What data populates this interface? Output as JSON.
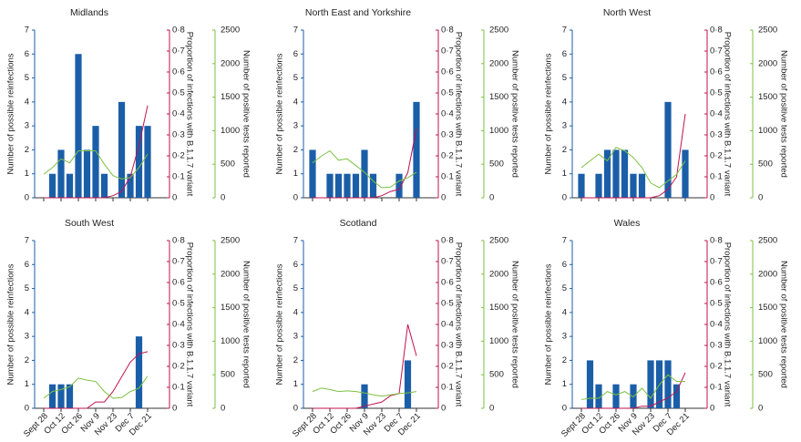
{
  "chart_data": [
    {
      "type": "bar",
      "title": "Midlands",
      "categories": [
        null,
        null,
        null,
        null,
        null,
        null,
        null,
        null,
        null,
        null,
        null,
        null,
        null
      ],
      "ylabel": "Number of possible reinfections",
      "y2label": "Proportion of infections with B.1.1.7 variant",
      "y3label": "Number of positive tests reported",
      "ylim": [
        0,
        7
      ],
      "yticks": [
        0,
        1,
        2,
        3,
        4,
        5,
        6,
        7
      ],
      "y2lim": [
        0,
        0.8
      ],
      "y2ticks": [
        0,
        {
          "value": 0.1,
          "label": "0·1"
        },
        {
          "value": 0.2,
          "label": "0·2"
        },
        {
          "value": 0.3,
          "label": "0·3"
        },
        {
          "value": 0.4,
          "label": "0·4"
        },
        {
          "value": 0.5,
          "label": "0·5"
        },
        {
          "value": 0.6,
          "label": "0·6"
        },
        {
          "value": 0.7,
          "label": "0·7"
        },
        {
          "value": 0.8,
          "label": "0·8"
        }
      ],
      "y3lim": [
        0,
        2500
      ],
      "y3ticks": [
        0,
        500,
        1000,
        1500,
        2000,
        2500
      ],
      "series": [
        {
          "type": "bar",
          "color": "#1b5ea8",
          "values": [
            0,
            1,
            2,
            1,
            6,
            2,
            3,
            1,
            0,
            4,
            1,
            3,
            3
          ]
        },
        {
          "type": "line",
          "axis": "y2",
          "color": "#c0114f",
          "values": [
            0,
            0,
            0,
            0,
            0,
            0,
            0,
            0,
            0.01,
            0.03,
            0.1,
            0.25,
            0.44
          ]
        },
        {
          "type": "line",
          "axis": "y3",
          "color": "#7dc142",
          "values": [
            350,
            450,
            580,
            520,
            700,
            700,
            700,
            500,
            330,
            280,
            300,
            450,
            650
          ]
        }
      ]
    },
    {
      "type": "bar",
      "title": "North East and Yorkshire",
      "categories": [
        null,
        null,
        null,
        null,
        null,
        null,
        null,
        null,
        null,
        null,
        null,
        null,
        null
      ],
      "ylabel": "Number of possible reinfections",
      "y2label": "Proportion of infections with B.1.1.7 variant",
      "y3label": "Number of positive tests reported",
      "ylim": [
        0,
        7
      ],
      "yticks": [
        0,
        1,
        2,
        3,
        4,
        5,
        6,
        7
      ],
      "y2lim": [
        0,
        0.8
      ],
      "y2ticks": [
        0,
        {
          "value": 0.1,
          "label": "0·1"
        },
        {
          "value": 0.2,
          "label": "0·2"
        },
        {
          "value": 0.3,
          "label": "0·3"
        },
        {
          "value": 0.4,
          "label": "0·4"
        },
        {
          "value": 0.5,
          "label": "0·5"
        },
        {
          "value": 0.6,
          "label": "0·6"
        },
        {
          "value": 0.7,
          "label": "0·7"
        },
        {
          "value": 0.8,
          "label": "0·8"
        }
      ],
      "y3lim": [
        0,
        2500
      ],
      "y3ticks": [
        0,
        500,
        1000,
        1500,
        2000,
        2500
      ],
      "series": [
        {
          "type": "bar",
          "color": "#1b5ea8",
          "values": [
            2,
            0,
            1,
            1,
            1,
            1,
            2,
            1,
            0,
            0,
            1,
            0,
            4
          ]
        },
        {
          "type": "line",
          "axis": "y2",
          "color": "#c0114f",
          "values": [
            0,
            0,
            0,
            0,
            0,
            0,
            0,
            0,
            0.01,
            0.03,
            0.04,
            0.12,
            0.33
          ]
        },
        {
          "type": "line",
          "axis": "y3",
          "color": "#7dc142",
          "values": [
            520,
            620,
            700,
            560,
            580,
            480,
            380,
            250,
            150,
            160,
            250,
            300,
            380
          ]
        }
      ]
    },
    {
      "type": "bar",
      "title": "North West",
      "categories": [
        null,
        null,
        null,
        null,
        null,
        null,
        null,
        null,
        null,
        null,
        null,
        null,
        null
      ],
      "ylabel": "Number of possible reinfections",
      "y2label": "Proportion of infections with B.1.1.7 variant",
      "y3label": "Number of positive tests reported",
      "ylim": [
        0,
        7
      ],
      "yticks": [
        0,
        1,
        2,
        3,
        4,
        5,
        6,
        7
      ],
      "y2lim": [
        0,
        0.8
      ],
      "y2ticks": [
        0,
        {
          "value": 0.1,
          "label": "0·1"
        },
        {
          "value": 0.2,
          "label": "0·2"
        },
        {
          "value": 0.3,
          "label": "0·3"
        },
        {
          "value": 0.4,
          "label": "0·4"
        },
        {
          "value": 0.5,
          "label": "0·5"
        },
        {
          "value": 0.6,
          "label": "0·6"
        },
        {
          "value": 0.7,
          "label": "0·7"
        },
        {
          "value": 0.8,
          "label": "0·8"
        }
      ],
      "y3lim": [
        0,
        2500
      ],
      "y3ticks": [
        0,
        500,
        1000,
        1500,
        2000,
        2500
      ],
      "series": [
        {
          "type": "bar",
          "color": "#1b5ea8",
          "values": [
            1,
            0,
            1,
            2,
            2,
            2,
            1,
            1,
            0,
            0,
            4,
            0,
            2
          ]
        },
        {
          "type": "line",
          "axis": "y2",
          "color": "#c0114f",
          "values": [
            0,
            0,
            0,
            0,
            0,
            0,
            0,
            0,
            0,
            0.01,
            0.04,
            0.1,
            0.4
          ]
        },
        {
          "type": "line",
          "axis": "y3",
          "color": "#7dc142",
          "values": [
            450,
            550,
            650,
            550,
            750,
            700,
            600,
            450,
            220,
            150,
            250,
            350,
            550
          ]
        }
      ]
    },
    {
      "type": "bar",
      "title": "South West",
      "categories": [
        "Sept 28",
        null,
        "Oct 12",
        null,
        "Oct 26",
        null,
        "Nov 9",
        null,
        "Nov 23",
        null,
        "Dec 7",
        null,
        "Dec 21"
      ],
      "ylabel": "Number of possible reinfections",
      "y2label": "Proportion of infections with B.1.1.7 variant",
      "y3label": "Number of positive tests reported",
      "ylim": [
        0,
        7
      ],
      "yticks": [
        0,
        1,
        2,
        3,
        4,
        5,
        6,
        7
      ],
      "y2lim": [
        0,
        0.8
      ],
      "y2ticks": [
        0,
        {
          "value": 0.1,
          "label": "0·1"
        },
        {
          "value": 0.2,
          "label": "0·2"
        },
        {
          "value": 0.3,
          "label": "0·3"
        },
        {
          "value": 0.4,
          "label": "0·4"
        },
        {
          "value": 0.5,
          "label": "0·5"
        },
        {
          "value": 0.6,
          "label": "0·6"
        },
        {
          "value": 0.7,
          "label": "0·7"
        },
        {
          "value": 0.8,
          "label": "0·8"
        }
      ],
      "y3lim": [
        0,
        2500
      ],
      "y3ticks": [
        0,
        500,
        1000,
        1500,
        2000,
        2500
      ],
      "series": [
        {
          "type": "bar",
          "color": "#1b5ea8",
          "values": [
            0,
            1,
            1,
            1,
            0,
            0,
            0,
            0,
            0,
            0,
            0,
            3,
            0
          ]
        },
        {
          "type": "line",
          "axis": "y2",
          "color": "#c0114f",
          "values": [
            0,
            0,
            0,
            0,
            0,
            0,
            0.03,
            0.03,
            0.08,
            0.15,
            0.22,
            0.26,
            0.27
          ]
        },
        {
          "type": "line",
          "axis": "y3",
          "color": "#7dc142",
          "values": [
            150,
            250,
            280,
            320,
            450,
            420,
            400,
            250,
            150,
            160,
            250,
            300,
            480
          ]
        }
      ]
    },
    {
      "type": "bar",
      "title": "Scotland",
      "categories": [
        "Sept 28",
        null,
        "Oct 12",
        null,
        "Oct 26",
        null,
        "Nov 9",
        null,
        "Nov 23",
        null,
        "Dec 7",
        null,
        "Dec 21"
      ],
      "ylabel": "Number of possible reinfections",
      "y2label": "Proportion of infections with B.1.1.7 variant",
      "y3label": "Number of positive tests reported",
      "ylim": [
        0,
        7
      ],
      "yticks": [
        0,
        1,
        2,
        3,
        4,
        5,
        6,
        7
      ],
      "y2lim": [
        0,
        0.8
      ],
      "y2ticks": [
        0,
        {
          "value": 0.1,
          "label": "0·1"
        },
        {
          "value": 0.2,
          "label": "0·2"
        },
        {
          "value": 0.3,
          "label": "0·3"
        },
        {
          "value": 0.4,
          "label": "0·4"
        },
        {
          "value": 0.5,
          "label": "0·5"
        },
        {
          "value": 0.6,
          "label": "0·6"
        },
        {
          "value": 0.7,
          "label": "0·7"
        },
        {
          "value": 0.8,
          "label": "0·8"
        }
      ],
      "y3lim": [
        0,
        2500
      ],
      "y3ticks": [
        0,
        500,
        1000,
        1500,
        2000,
        2500
      ],
      "series": [
        {
          "type": "bar",
          "color": "#1b5ea8",
          "values": [
            0,
            0,
            0,
            0,
            0,
            0,
            1,
            0,
            0,
            0,
            0,
            2,
            0
          ]
        },
        {
          "type": "line",
          "axis": "y2",
          "color": "#c0114f",
          "values": [
            0,
            0,
            0,
            0,
            0,
            0,
            0.01,
            0.02,
            0.03,
            0.06,
            0.07,
            0.4,
            0.25
          ]
        },
        {
          "type": "line",
          "axis": "y3",
          "color": "#7dc142",
          "values": [
            250,
            300,
            280,
            250,
            260,
            250,
            230,
            200,
            180,
            200,
            220,
            230,
            250
          ]
        }
      ]
    },
    {
      "type": "bar",
      "title": "Wales",
      "categories": [
        "Sept 28",
        null,
        "Oct 12",
        null,
        "Oct 26",
        null,
        "Nov 9",
        null,
        "Nov 23",
        null,
        "Dec 7",
        null,
        "Dec 21"
      ],
      "ylabel": "Number of possible reinfections",
      "y2label": "Proportion of infections with B.1.1.7 variant",
      "y3label": "Number of positive tests reported",
      "ylim": [
        0,
        7
      ],
      "yticks": [
        0,
        1,
        2,
        3,
        4,
        5,
        6,
        7
      ],
      "y2lim": [
        0,
        0.8
      ],
      "y2ticks": [
        0,
        {
          "value": 0.1,
          "label": "0·1"
        },
        {
          "value": 0.2,
          "label": "0·2"
        },
        {
          "value": 0.3,
          "label": "0·3"
        },
        {
          "value": 0.4,
          "label": "0·4"
        },
        {
          "value": 0.5,
          "label": "0·5"
        },
        {
          "value": 0.6,
          "label": "0·6"
        },
        {
          "value": 0.7,
          "label": "0·7"
        },
        {
          "value": 0.8,
          "label": "0·8"
        }
      ],
      "y3lim": [
        0,
        2500
      ],
      "y3ticks": [
        0,
        500,
        1000,
        1500,
        2000,
        2500
      ],
      "series": [
        {
          "type": "bar",
          "color": "#1b5ea8",
          "values": [
            0,
            2,
            1,
            0,
            1,
            0,
            1,
            0,
            2,
            2,
            2,
            1,
            0
          ]
        },
        {
          "type": "line",
          "axis": "y2",
          "color": "#c0114f",
          "values": [
            0,
            0,
            0,
            0,
            0,
            0,
            0,
            0.01,
            0.01,
            0.03,
            0.05,
            0.08,
            0.17
          ]
        },
        {
          "type": "line",
          "axis": "y3",
          "color": "#7dc142",
          "values": [
            130,
            150,
            150,
            250,
            200,
            250,
            170,
            300,
            150,
            350,
            500,
            400,
            400
          ]
        }
      ]
    }
  ]
}
